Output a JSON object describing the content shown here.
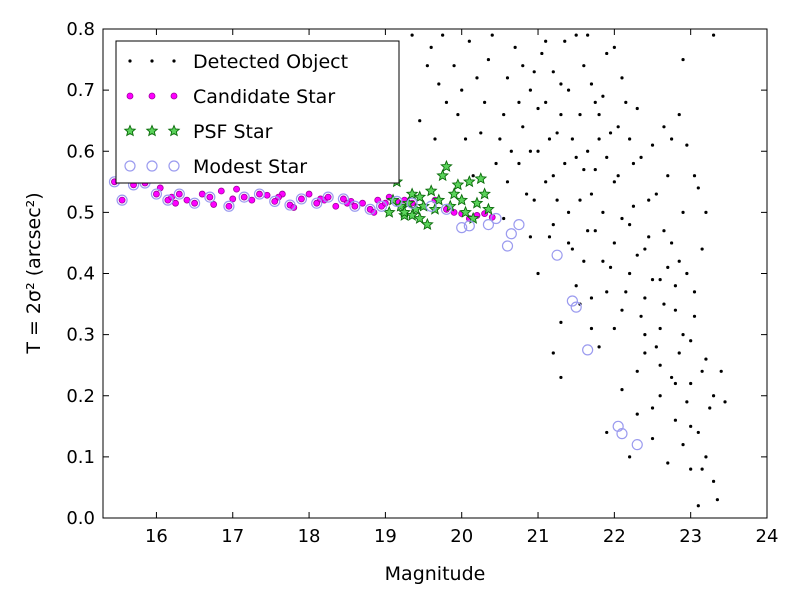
{
  "chart_data": {
    "type": "scatter",
    "title": "",
    "xlabel": "Magnitude",
    "ylabel": "T = 2σ² (arcsec²)",
    "xlim": [
      15.3,
      24.0
    ],
    "ylim": [
      0.0,
      0.8
    ],
    "xticks": [
      16,
      17,
      18,
      19,
      20,
      21,
      22,
      23,
      24
    ],
    "yticks": [
      0.0,
      0.1,
      0.2,
      0.3,
      0.4,
      0.5,
      0.6,
      0.7,
      0.8
    ],
    "grid": false,
    "legend": "top-left",
    "series": [
      {
        "name": "Detected Object",
        "marker": "dot",
        "color": "#000000",
        "points": [
          [
            19.35,
            0.79
          ],
          [
            19.6,
            0.77
          ],
          [
            19.75,
            0.79
          ],
          [
            19.9,
            0.74
          ],
          [
            20.0,
            0.7
          ],
          [
            20.1,
            0.78
          ],
          [
            20.2,
            0.72
          ],
          [
            20.3,
            0.68
          ],
          [
            20.35,
            0.75
          ],
          [
            20.4,
            0.79
          ],
          [
            20.5,
            0.62
          ],
          [
            20.55,
            0.66
          ],
          [
            20.6,
            0.72
          ],
          [
            20.7,
            0.77
          ],
          [
            20.75,
            0.58
          ],
          [
            20.8,
            0.64
          ],
          [
            20.9,
            0.7
          ],
          [
            20.95,
            0.52
          ],
          [
            21.0,
            0.6
          ],
          [
            21.05,
            0.76
          ],
          [
            21.1,
            0.68
          ],
          [
            21.15,
            0.46
          ],
          [
            21.2,
            0.56
          ],
          [
            21.25,
            0.63
          ],
          [
            21.3,
            0.71
          ],
          [
            21.35,
            0.78
          ],
          [
            21.4,
            0.5
          ],
          [
            21.45,
            0.44
          ],
          [
            21.5,
            0.59
          ],
          [
            21.55,
            0.66
          ],
          [
            21.6,
            0.74
          ],
          [
            21.65,
            0.79
          ],
          [
            21.7,
            0.53
          ],
          [
            21.75,
            0.47
          ],
          [
            21.8,
            0.62
          ],
          [
            21.85,
            0.69
          ],
          [
            21.9,
            0.76
          ],
          [
            21.95,
            0.41
          ],
          [
            22.0,
            0.55
          ],
          [
            22.05,
            0.64
          ],
          [
            22.1,
            0.72
          ],
          [
            22.15,
            0.37
          ],
          [
            22.2,
            0.48
          ],
          [
            22.25,
            0.58
          ],
          [
            22.3,
            0.67
          ],
          [
            22.35,
            0.33
          ],
          [
            22.4,
            0.44
          ],
          [
            22.45,
            0.52
          ],
          [
            22.5,
            0.61
          ],
          [
            22.55,
            0.28
          ],
          [
            22.6,
            0.39
          ],
          [
            22.65,
            0.47
          ],
          [
            22.7,
            0.56
          ],
          [
            22.75,
            0.23
          ],
          [
            22.8,
            0.34
          ],
          [
            22.85,
            0.42
          ],
          [
            22.9,
            0.5
          ],
          [
            22.95,
            0.19
          ],
          [
            23.0,
            0.29
          ],
          [
            23.05,
            0.37
          ],
          [
            23.1,
            0.14
          ],
          [
            23.15,
            0.24
          ],
          [
            23.2,
            0.1
          ],
          [
            23.25,
            0.18
          ],
          [
            23.3,
            0.06
          ],
          [
            23.35,
            0.03
          ],
          [
            23.45,
            0.19
          ],
          [
            23.1,
            0.02
          ],
          [
            23.0,
            0.08
          ],
          [
            22.9,
            0.12
          ],
          [
            22.8,
            0.16
          ],
          [
            22.7,
            0.09
          ],
          [
            22.6,
            0.2
          ],
          [
            22.5,
            0.13
          ],
          [
            22.4,
            0.27
          ],
          [
            22.3,
            0.17
          ],
          [
            22.2,
            0.1
          ],
          [
            22.1,
            0.21
          ],
          [
            22.0,
            0.31
          ],
          [
            21.9,
            0.14
          ],
          [
            21.8,
            0.28
          ],
          [
            21.7,
            0.36
          ],
          [
            21.6,
            0.42
          ],
          [
            21.5,
            0.38
          ],
          [
            21.4,
            0.45
          ],
          [
            21.3,
            0.32
          ],
          [
            21.2,
            0.27
          ],
          [
            21.3,
            0.23
          ],
          [
            21.0,
            0.4
          ],
          [
            20.9,
            0.46
          ],
          [
            21.6,
            0.57
          ],
          [
            21.7,
            0.71
          ],
          [
            21.8,
            0.66
          ],
          [
            21.9,
            0.59
          ],
          [
            22.0,
            0.77
          ],
          [
            22.1,
            0.49
          ],
          [
            22.2,
            0.62
          ],
          [
            22.3,
            0.43
          ],
          [
            22.4,
            0.36
          ],
          [
            22.5,
            0.39
          ],
          [
            22.6,
            0.31
          ],
          [
            22.7,
            0.41
          ],
          [
            22.8,
            0.38
          ],
          [
            22.9,
            0.3
          ],
          [
            23.0,
            0.22
          ],
          [
            23.2,
            0.26
          ],
          [
            23.3,
            0.2
          ],
          [
            23.4,
            0.24
          ],
          [
            21.55,
            0.52
          ],
          [
            21.65,
            0.6
          ],
          [
            21.75,
            0.68
          ],
          [
            21.85,
            0.5
          ],
          [
            21.95,
            0.63
          ],
          [
            22.05,
            0.56
          ],
          [
            22.15,
            0.68
          ],
          [
            22.25,
            0.51
          ],
          [
            22.35,
            0.59
          ],
          [
            22.45,
            0.46
          ],
          [
            22.55,
            0.53
          ],
          [
            22.65,
            0.35
          ],
          [
            22.75,
            0.45
          ],
          [
            22.85,
            0.27
          ],
          [
            22.95,
            0.4
          ],
          [
            23.05,
            0.33
          ],
          [
            23.15,
            0.44
          ],
          [
            21.1,
            0.78
          ],
          [
            21.2,
            0.73
          ],
          [
            21.3,
            0.66
          ],
          [
            21.4,
            0.7
          ],
          [
            21.5,
            0.79
          ],
          [
            20.8,
            0.74
          ],
          [
            20.9,
            0.6
          ],
          [
            21.0,
            0.67
          ],
          [
            21.1,
            0.55
          ],
          [
            21.2,
            0.48
          ],
          [
            20.6,
            0.55
          ],
          [
            20.65,
            0.6
          ],
          [
            20.85,
            0.53
          ],
          [
            21.45,
            0.62
          ],
          [
            21.75,
            0.57
          ],
          [
            22.0,
            0.45
          ],
          [
            22.2,
            0.4
          ],
          [
            22.4,
            0.3
          ],
          [
            22.6,
            0.25
          ],
          [
            22.8,
            0.22
          ],
          [
            23.0,
            0.15
          ],
          [
            23.15,
            0.08
          ],
          [
            22.5,
            0.18
          ],
          [
            22.3,
            0.24
          ],
          [
            22.1,
            0.34
          ],
          [
            21.9,
            0.37
          ],
          [
            21.7,
            0.31
          ],
          [
            21.85,
            0.42
          ],
          [
            21.65,
            0.47
          ],
          [
            21.55,
            0.35
          ],
          [
            21.35,
            0.58
          ],
          [
            21.25,
            0.52
          ],
          [
            21.15,
            0.62
          ],
          [
            20.95,
            0.73
          ],
          [
            20.75,
            0.68
          ],
          [
            20.45,
            0.58
          ],
          [
            20.25,
            0.63
          ],
          [
            20.15,
            0.56
          ],
          [
            20.05,
            0.62
          ],
          [
            19.95,
            0.66
          ],
          [
            19.8,
            0.68
          ],
          [
            19.7,
            0.71
          ],
          [
            19.55,
            0.74
          ],
          [
            19.45,
            0.65
          ],
          [
            19.65,
            0.62
          ],
          [
            20.55,
            0.49
          ],
          [
            22.65,
            0.64
          ],
          [
            22.75,
            0.62
          ],
          [
            22.85,
            0.66
          ],
          [
            23.05,
            0.56
          ],
          [
            23.2,
            0.5
          ],
          [
            23.3,
            0.79
          ],
          [
            22.9,
            0.75
          ],
          [
            22.95,
            0.61
          ],
          [
            23.1,
            0.54
          ]
        ]
      },
      {
        "name": "Candidate Star",
        "marker": "circle-magenta",
        "color": "#ff00ff",
        "points": [
          [
            15.45,
            0.55
          ],
          [
            15.55,
            0.52
          ],
          [
            15.7,
            0.545
          ],
          [
            15.85,
            0.548
          ],
          [
            16.0,
            0.53
          ],
          [
            16.05,
            0.54
          ],
          [
            16.15,
            0.52
          ],
          [
            16.25,
            0.515
          ],
          [
            16.3,
            0.53
          ],
          [
            16.4,
            0.52
          ],
          [
            16.5,
            0.515
          ],
          [
            16.6,
            0.53
          ],
          [
            16.7,
            0.525
          ],
          [
            16.75,
            0.513
          ],
          [
            16.85,
            0.535
          ],
          [
            16.95,
            0.51
          ],
          [
            17.05,
            0.538
          ],
          [
            17.15,
            0.525
          ],
          [
            17.25,
            0.52
          ],
          [
            17.35,
            0.53
          ],
          [
            17.45,
            0.528
          ],
          [
            17.55,
            0.518
          ],
          [
            17.65,
            0.53
          ],
          [
            17.75,
            0.512
          ],
          [
            17.8,
            0.508
          ],
          [
            17.9,
            0.522
          ],
          [
            18.0,
            0.53
          ],
          [
            18.1,
            0.515
          ],
          [
            18.2,
            0.52
          ],
          [
            18.25,
            0.525
          ],
          [
            18.35,
            0.51
          ],
          [
            18.45,
            0.522
          ],
          [
            18.55,
            0.518
          ],
          [
            18.6,
            0.51
          ],
          [
            18.7,
            0.515
          ],
          [
            18.8,
            0.505
          ],
          [
            18.9,
            0.52
          ],
          [
            18.95,
            0.51
          ],
          [
            19.0,
            0.515
          ],
          [
            19.05,
            0.525
          ],
          [
            19.15,
            0.518
          ],
          [
            19.25,
            0.52
          ],
          [
            19.35,
            0.515
          ],
          [
            19.5,
            0.51
          ],
          [
            19.65,
            0.52
          ],
          [
            19.8,
            0.505
          ],
          [
            19.9,
            0.5
          ],
          [
            20.0,
            0.498
          ],
          [
            20.1,
            0.49
          ],
          [
            20.2,
            0.495
          ],
          [
            20.3,
            0.498
          ],
          [
            20.4,
            0.492
          ],
          [
            16.2,
            0.525
          ],
          [
            17.0,
            0.522
          ],
          [
            17.6,
            0.525
          ],
          [
            18.15,
            0.522
          ],
          [
            18.5,
            0.515
          ],
          [
            18.85,
            0.5
          ]
        ]
      },
      {
        "name": "PSF Star",
        "marker": "star",
        "color": "#1a9a1a",
        "points": [
          [
            19.05,
            0.5
          ],
          [
            19.1,
            0.52
          ],
          [
            19.15,
            0.55
          ],
          [
            19.2,
            0.51
          ],
          [
            19.25,
            0.495
          ],
          [
            19.3,
            0.515
          ],
          [
            19.35,
            0.53
          ],
          [
            19.4,
            0.505
          ],
          [
            19.45,
            0.525
          ],
          [
            19.5,
            0.51
          ],
          [
            19.55,
            0.48
          ],
          [
            19.6,
            0.535
          ],
          [
            19.65,
            0.505
          ],
          [
            19.7,
            0.52
          ],
          [
            19.75,
            0.56
          ],
          [
            19.8,
            0.575
          ],
          [
            19.85,
            0.51
          ],
          [
            19.9,
            0.53
          ],
          [
            19.95,
            0.545
          ],
          [
            20.0,
            0.52
          ],
          [
            20.05,
            0.5
          ],
          [
            20.1,
            0.55
          ],
          [
            20.15,
            0.49
          ],
          [
            20.2,
            0.515
          ],
          [
            20.25,
            0.555
          ],
          [
            20.3,
            0.53
          ],
          [
            20.35,
            0.505
          ],
          [
            19.45,
            0.49
          ],
          [
            19.35,
            0.495
          ],
          [
            19.25,
            0.5
          ]
        ]
      },
      {
        "name": "Modest Star",
        "marker": "circle-open",
        "color": "#9b9bef",
        "points": [
          [
            15.45,
            0.55
          ],
          [
            15.55,
            0.52
          ],
          [
            15.7,
            0.545
          ],
          [
            15.85,
            0.548
          ],
          [
            16.0,
            0.53
          ],
          [
            16.15,
            0.52
          ],
          [
            16.3,
            0.53
          ],
          [
            16.5,
            0.515
          ],
          [
            16.7,
            0.525
          ],
          [
            16.95,
            0.51
          ],
          [
            17.15,
            0.525
          ],
          [
            17.35,
            0.53
          ],
          [
            17.55,
            0.518
          ],
          [
            17.75,
            0.512
          ],
          [
            17.9,
            0.522
          ],
          [
            18.1,
            0.515
          ],
          [
            18.25,
            0.525
          ],
          [
            18.45,
            0.522
          ],
          [
            18.6,
            0.51
          ],
          [
            18.8,
            0.505
          ],
          [
            18.95,
            0.51
          ],
          [
            19.15,
            0.518
          ],
          [
            19.35,
            0.515
          ],
          [
            19.6,
            0.51
          ],
          [
            19.8,
            0.505
          ],
          [
            20.0,
            0.475
          ],
          [
            20.1,
            0.478
          ],
          [
            20.35,
            0.48
          ],
          [
            20.45,
            0.49
          ],
          [
            20.6,
            0.445
          ],
          [
            20.65,
            0.465
          ],
          [
            20.75,
            0.48
          ],
          [
            21.25,
            0.43
          ],
          [
            21.45,
            0.355
          ],
          [
            21.5,
            0.345
          ],
          [
            21.65,
            0.275
          ],
          [
            22.05,
            0.15
          ],
          [
            22.1,
            0.138
          ],
          [
            22.3,
            0.12
          ],
          [
            15.95,
            0.577
          ]
        ]
      }
    ]
  }
}
